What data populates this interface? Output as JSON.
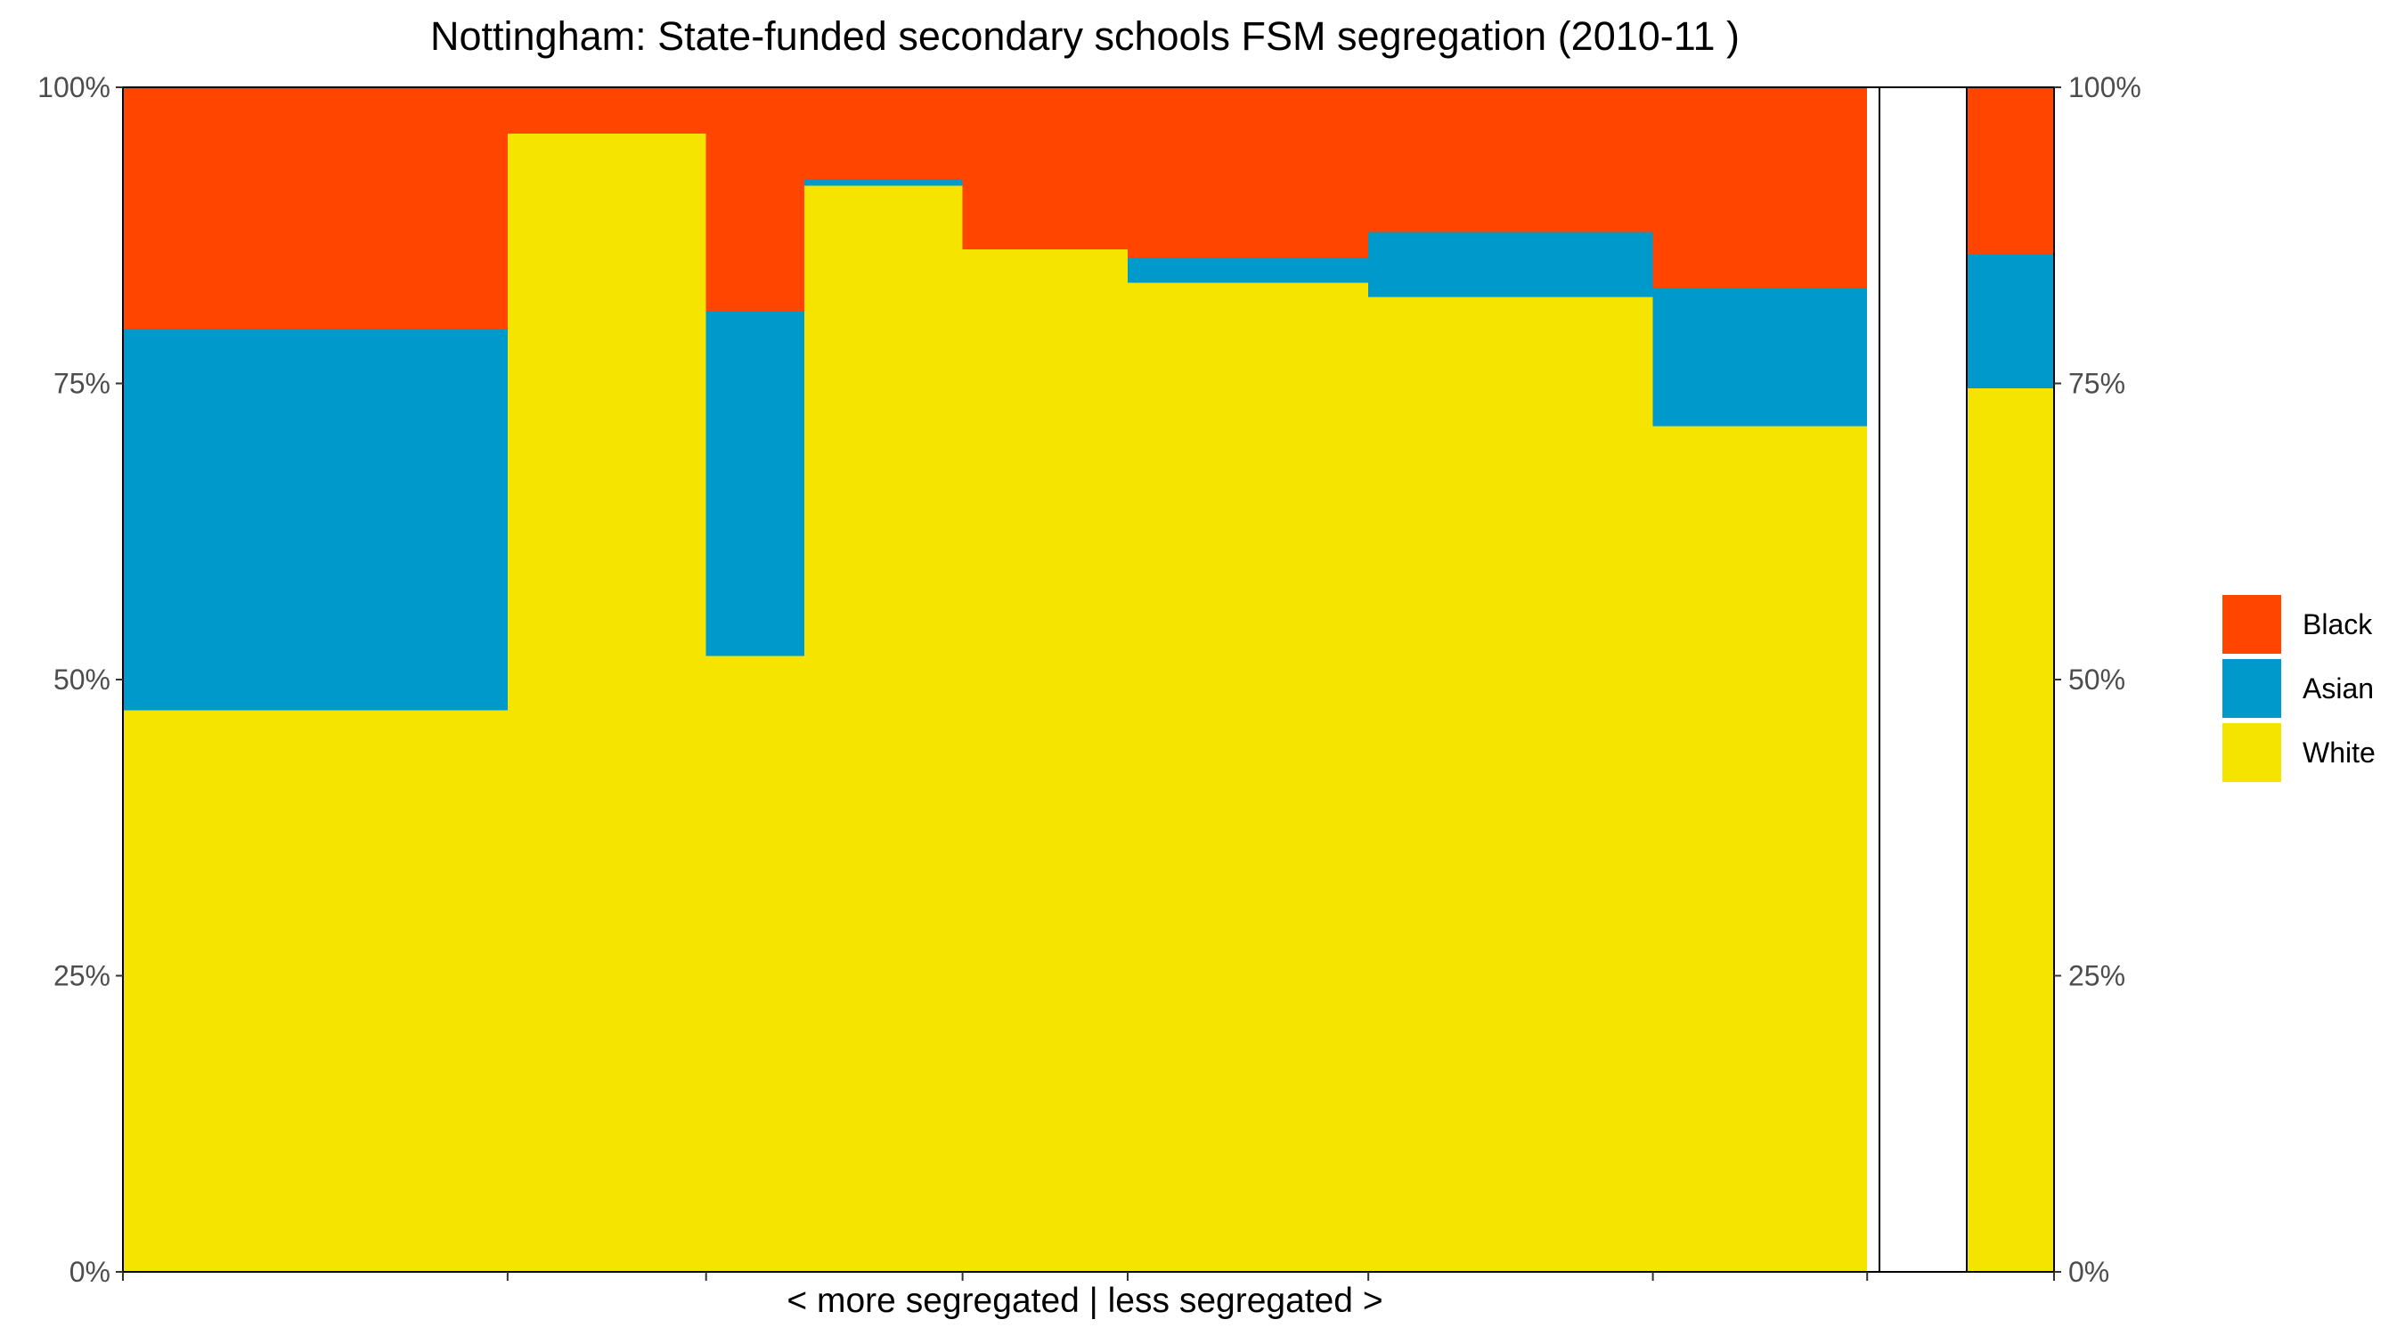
{
  "chart_data": {
    "type": "bar",
    "subtype": "stacked-variable-width-mosaic",
    "title": "Nottingham: State-funded secondary schools FSM segregation (2010-11 )",
    "xlabel": "< more segregated | less segregated >",
    "ylabel": "",
    "ylim": [
      0,
      1
    ],
    "y_ticks": [
      "0%",
      "25%",
      "50%",
      "75%",
      "100%"
    ],
    "y_tick_values": [
      0,
      0.25,
      0.5,
      0.75,
      1
    ],
    "x_domain": [
      0,
      1
    ],
    "colors": {
      "White": "#F5E400",
      "Asian": "#0099CC",
      "Black": "#FF4500"
    },
    "legend_order": [
      "Black",
      "Asian",
      "White"
    ],
    "legend_position": "right",
    "grid": false,
    "segments": [
      {
        "x0": 0.0,
        "x1": 0.219,
        "White": 0.474,
        "Asian": 0.322,
        "Black": 0.204
      },
      {
        "x0": 0.219,
        "x1": 0.332,
        "White": 0.961,
        "Asian": 0.0,
        "Black": 0.039
      },
      {
        "x0": 0.332,
        "x1": 0.388,
        "White": 0.52,
        "Asian": 0.291,
        "Black": 0.189
      },
      {
        "x0": 0.388,
        "x1": 0.478,
        "White": 0.917,
        "Asian": 0.005,
        "Black": 0.078
      },
      {
        "x0": 0.478,
        "x1": 0.572,
        "White": 0.863,
        "Asian": 0.0,
        "Black": 0.137
      },
      {
        "x0": 0.572,
        "x1": 0.709,
        "White": 0.835,
        "Asian": 0.021,
        "Black": 0.144
      },
      {
        "x0": 0.709,
        "x1": 0.871,
        "White": 0.823,
        "Asian": 0.055,
        "Black": 0.122
      },
      {
        "x0": 0.871,
        "x1": 0.993,
        "White": 0.714,
        "Asian": 0.117,
        "Black": 0.169
      }
    ],
    "summary_bar": {
      "White": 0.746,
      "Asian": 0.113,
      "Black": 0.141
    },
    "x_break_ticks": [
      0.0,
      0.219,
      0.332,
      0.478,
      0.572,
      0.709,
      0.871,
      0.993
    ]
  }
}
